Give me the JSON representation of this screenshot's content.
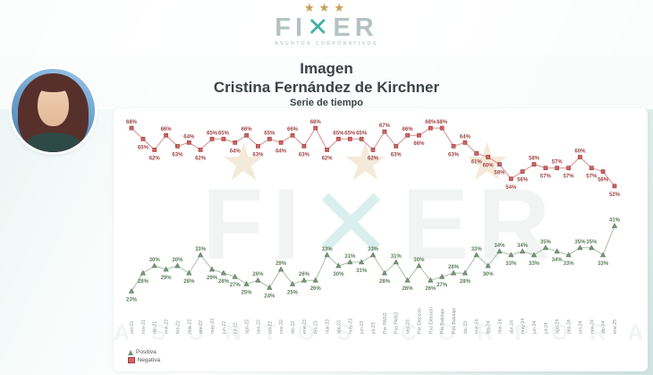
{
  "logo": {
    "stars": "★★★",
    "brand_fi": "FI",
    "brand_x_glyph": "✕",
    "brand_er": "ER",
    "tagline": "ASUNTOS CORPORATIVOS"
  },
  "header": {
    "title": "Imagen",
    "subtitle": "Cristina Fernández de Kirchner",
    "caption": "Serie de tiempo"
  },
  "watermark": {
    "stars": "★ ★ ★",
    "brand_fi": "FI",
    "brand_x_glyph": "✕",
    "brand_er": "ER",
    "tagline": "ASUNTOS CORPORATIVOS"
  },
  "legend": [
    {
      "label": "Positiva",
      "color": "#6f9370",
      "marker": "triangle"
    },
    {
      "label": "Negativa",
      "color": "#c0504d",
      "marker": "square"
    }
  ],
  "chart_data": {
    "type": "line",
    "title": "Imagen Cristina Fernández de Kirchner — Serie de tiempo",
    "xlabel": "",
    "ylabel": "",
    "ylim": [
      20,
      70
    ],
    "grid": false,
    "point_labels": true,
    "legend_position": "bottom-left",
    "x": [
      "oct-21",
      "nov-21",
      "dic-21",
      "ene-22",
      "feb-22",
      "mar-22",
      "abr-22",
      "may-22",
      "jun-22",
      "jul-22",
      "ago-22",
      "sep-22",
      "oct-22",
      "nov-22",
      "dic-22",
      "ene-23",
      "feb-23",
      "mar-23",
      "abr-23",
      "may-23",
      "jun-23",
      "jul-23",
      "Pre PASO",
      "Pos PASO",
      "sep-23",
      "Pre Elección",
      "Pos Elección",
      "Pre Balotaje",
      "Pos Balotaje",
      "dic-23",
      "ene-24",
      "feb-24",
      "mar-24",
      "abr-24",
      "may-24",
      "jun-24",
      "jul-24",
      "ago-24",
      "sep-24",
      "oct-24",
      "nov-24",
      "dic-24",
      "ene-25"
    ],
    "series": [
      {
        "name": "Negativa",
        "marker": "square",
        "line_color": "#d49090",
        "marker_fill": "#cc6666",
        "marker_stroke": "#a94442",
        "label_color": "#a04646",
        "values": [
          68,
          65,
          62,
          66,
          63,
          64,
          62,
          65,
          65,
          64,
          66,
          63,
          65,
          64,
          66,
          63,
          68,
          62,
          65,
          65,
          65,
          62,
          67,
          63,
          66,
          66,
          68,
          68,
          63,
          64,
          61,
          60,
          58,
          54,
          56,
          58,
          57,
          57,
          57,
          60,
          57,
          56,
          52
        ]
      },
      {
        "name": "Positiva",
        "marker": "triangle",
        "line_color": "#a9bfa9",
        "marker_fill": "#7d9b7d",
        "marker_stroke": "#647f64",
        "label_color": "#61805f",
        "values": [
          23,
          28,
          30,
          29,
          30,
          28,
          33,
          29,
          28,
          27,
          25,
          26,
          24,
          29,
          25,
          26,
          26,
          33,
          30,
          31,
          31,
          33,
          28,
          31,
          26,
          30,
          26,
          27,
          28,
          28,
          33,
          30,
          34,
          33,
          34,
          33,
          35,
          34,
          33,
          35,
          35,
          33,
          41
        ]
      }
    ]
  }
}
